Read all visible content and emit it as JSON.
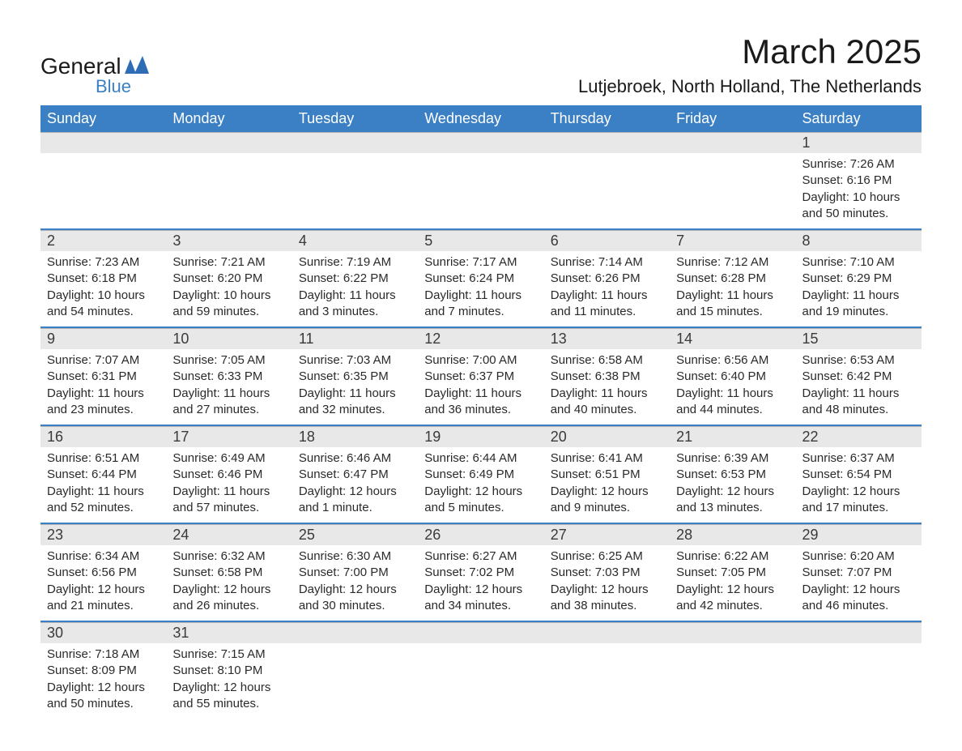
{
  "logo": {
    "general": "General",
    "blue": "Blue"
  },
  "title": "March 2025",
  "location": "Lutjebroek, North Holland, The Netherlands",
  "colors": {
    "header_bg": "#3b7fc4",
    "header_text": "#ffffff",
    "daynum_bg": "#e8e8e8",
    "row_divider": "#3b7fc4",
    "text": "#2a2a2a",
    "logo_blue": "#3b7fc4"
  },
  "day_headers": [
    "Sunday",
    "Monday",
    "Tuesday",
    "Wednesday",
    "Thursday",
    "Friday",
    "Saturday"
  ],
  "weeks": [
    [
      null,
      null,
      null,
      null,
      null,
      null,
      {
        "n": "1",
        "sr": "7:26 AM",
        "ss": "6:16 PM",
        "dl": "10 hours and 50 minutes."
      }
    ],
    [
      {
        "n": "2",
        "sr": "7:23 AM",
        "ss": "6:18 PM",
        "dl": "10 hours and 54 minutes."
      },
      {
        "n": "3",
        "sr": "7:21 AM",
        "ss": "6:20 PM",
        "dl": "10 hours and 59 minutes."
      },
      {
        "n": "4",
        "sr": "7:19 AM",
        "ss": "6:22 PM",
        "dl": "11 hours and 3 minutes."
      },
      {
        "n": "5",
        "sr": "7:17 AM",
        "ss": "6:24 PM",
        "dl": "11 hours and 7 minutes."
      },
      {
        "n": "6",
        "sr": "7:14 AM",
        "ss": "6:26 PM",
        "dl": "11 hours and 11 minutes."
      },
      {
        "n": "7",
        "sr": "7:12 AM",
        "ss": "6:28 PM",
        "dl": "11 hours and 15 minutes."
      },
      {
        "n": "8",
        "sr": "7:10 AM",
        "ss": "6:29 PM",
        "dl": "11 hours and 19 minutes."
      }
    ],
    [
      {
        "n": "9",
        "sr": "7:07 AM",
        "ss": "6:31 PM",
        "dl": "11 hours and 23 minutes."
      },
      {
        "n": "10",
        "sr": "7:05 AM",
        "ss": "6:33 PM",
        "dl": "11 hours and 27 minutes."
      },
      {
        "n": "11",
        "sr": "7:03 AM",
        "ss": "6:35 PM",
        "dl": "11 hours and 32 minutes."
      },
      {
        "n": "12",
        "sr": "7:00 AM",
        "ss": "6:37 PM",
        "dl": "11 hours and 36 minutes."
      },
      {
        "n": "13",
        "sr": "6:58 AM",
        "ss": "6:38 PM",
        "dl": "11 hours and 40 minutes."
      },
      {
        "n": "14",
        "sr": "6:56 AM",
        "ss": "6:40 PM",
        "dl": "11 hours and 44 minutes."
      },
      {
        "n": "15",
        "sr": "6:53 AM",
        "ss": "6:42 PM",
        "dl": "11 hours and 48 minutes."
      }
    ],
    [
      {
        "n": "16",
        "sr": "6:51 AM",
        "ss": "6:44 PM",
        "dl": "11 hours and 52 minutes."
      },
      {
        "n": "17",
        "sr": "6:49 AM",
        "ss": "6:46 PM",
        "dl": "11 hours and 57 minutes."
      },
      {
        "n": "18",
        "sr": "6:46 AM",
        "ss": "6:47 PM",
        "dl": "12 hours and 1 minute."
      },
      {
        "n": "19",
        "sr": "6:44 AM",
        "ss": "6:49 PM",
        "dl": "12 hours and 5 minutes."
      },
      {
        "n": "20",
        "sr": "6:41 AM",
        "ss": "6:51 PM",
        "dl": "12 hours and 9 minutes."
      },
      {
        "n": "21",
        "sr": "6:39 AM",
        "ss": "6:53 PM",
        "dl": "12 hours and 13 minutes."
      },
      {
        "n": "22",
        "sr": "6:37 AM",
        "ss": "6:54 PM",
        "dl": "12 hours and 17 minutes."
      }
    ],
    [
      {
        "n": "23",
        "sr": "6:34 AM",
        "ss": "6:56 PM",
        "dl": "12 hours and 21 minutes."
      },
      {
        "n": "24",
        "sr": "6:32 AM",
        "ss": "6:58 PM",
        "dl": "12 hours and 26 minutes."
      },
      {
        "n": "25",
        "sr": "6:30 AM",
        "ss": "7:00 PM",
        "dl": "12 hours and 30 minutes."
      },
      {
        "n": "26",
        "sr": "6:27 AM",
        "ss": "7:02 PM",
        "dl": "12 hours and 34 minutes."
      },
      {
        "n": "27",
        "sr": "6:25 AM",
        "ss": "7:03 PM",
        "dl": "12 hours and 38 minutes."
      },
      {
        "n": "28",
        "sr": "6:22 AM",
        "ss": "7:05 PM",
        "dl": "12 hours and 42 minutes."
      },
      {
        "n": "29",
        "sr": "6:20 AM",
        "ss": "7:07 PM",
        "dl": "12 hours and 46 minutes."
      }
    ],
    [
      {
        "n": "30",
        "sr": "7:18 AM",
        "ss": "8:09 PM",
        "dl": "12 hours and 50 minutes."
      },
      {
        "n": "31",
        "sr": "7:15 AM",
        "ss": "8:10 PM",
        "dl": "12 hours and 55 minutes."
      },
      null,
      null,
      null,
      null,
      null
    ]
  ],
  "labels": {
    "sunrise": "Sunrise: ",
    "sunset": "Sunset: ",
    "daylight": "Daylight: "
  }
}
